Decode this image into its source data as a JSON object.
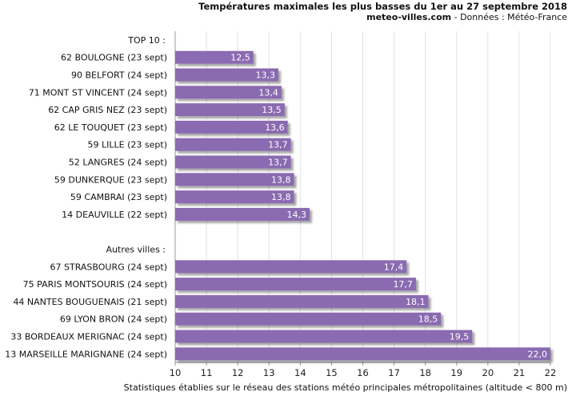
{
  "header": {
    "title": "Températures maximales les plus basses du 1er au 27 septembre 2018",
    "site": "meteo-villes.com",
    "source": " - Données : Météo-France"
  },
  "footnote": "Statistiques établies sur le réseau des stations météo principales métropolitaines (altitude < 800 m)",
  "chart_data": {
    "type": "bar",
    "orientation": "horizontal",
    "title": "Températures maximales les plus basses du 1er au 27 septembre 2018",
    "xlim": [
      10,
      22
    ],
    "xticks": [
      "10",
      "11",
      "12",
      "13",
      "14",
      "15",
      "16",
      "17",
      "18",
      "19",
      "20",
      "21",
      "22"
    ],
    "bar_color": "#8a6bb0",
    "groups": [
      {
        "heading": "TOP 10 :",
        "categories": [
          "62 BOULOGNE (23 sept)",
          "90 BELFORT (24 sept)",
          "71 MONT ST VINCENT (24 sept)",
          "62 CAP GRIS NEZ (23 sept)",
          "62 LE TOUQUET (23 sept)",
          "59 LILLE (23 sept)",
          "52 LANGRES (24 sept)",
          "59 DUNKERQUE (23 sept)",
          "59 CAMBRAI (23 sept)",
          "14 DEAUVILLE (22 sept)"
        ],
        "values": [
          12.5,
          13.3,
          13.4,
          13.5,
          13.6,
          13.7,
          13.7,
          13.8,
          13.8,
          14.3
        ],
        "labels": [
          "12,5",
          "13,3",
          "13,4",
          "13,5",
          "13,6",
          "13,7",
          "13,7",
          "13,8",
          "13,8",
          "14,3"
        ]
      },
      {
        "heading": "Autres villes :",
        "categories": [
          "67 STRASBOURG (24 sept)",
          "75 PARIS MONTSOURIS (24 sept)",
          "44 NANTES BOUGUENAIS (21 sept)",
          "69 LYON BRON (24 sept)",
          "33 BORDEAUX MERIGNAC (24 sept)",
          "13 MARSEILLE MARIGNANE (24 sept)"
        ],
        "values": [
          17.4,
          17.7,
          18.1,
          18.5,
          19.5,
          22.0
        ],
        "labels": [
          "17,4",
          "17,7",
          "18,1",
          "18,5",
          "19,5",
          "22,0"
        ]
      }
    ]
  }
}
